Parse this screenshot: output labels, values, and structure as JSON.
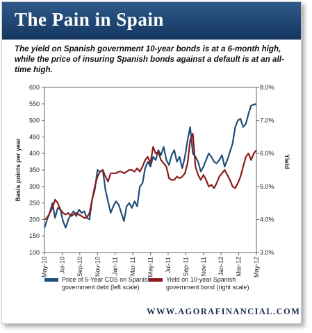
{
  "header": {
    "title": "The Pain in Spain",
    "subtitle": "The yield on Spanish government 10-year bonds is at a 6-month high, while the price of  insuring Spanish bonds against a default  is at an all-time high."
  },
  "footer": {
    "brand": "WWW.AGORAFINANCIAL.COM"
  },
  "colors": {
    "banner": "#1e4470",
    "cds": "#1f4e79",
    "yield": "#8b1a1a"
  },
  "chart_data": {
    "type": "line",
    "ylabel": "Basis points per year",
    "y2label": "Yield",
    "ylim": [
      100,
      600
    ],
    "y2lim": [
      3.0,
      8.0
    ],
    "yticks": [
      "600",
      "550",
      "500",
      "450",
      "400",
      "350",
      "300",
      "250",
      "200",
      "150",
      "100"
    ],
    "y2ticks": [
      "8.0%",
      "7.0%",
      "6.0%",
      "5.0%",
      "4.0%",
      "3.0%"
    ],
    "xticks": [
      "May-10",
      "Jul-10",
      "Sep-10",
      "Nov-10",
      "Jan-11",
      "Mar-11",
      "May-11",
      "Jul-11",
      "Sep-11",
      "Nov-11",
      "Jan-12",
      "Mar-12",
      "May-12"
    ],
    "grid": false,
    "legend_position": "bottom",
    "series": [
      {
        "name": "Price of 5-Year CDS on Spanish government debt (left scale)",
        "axis": "left",
        "x": [
          0,
          0.15,
          0.3,
          0.45,
          0.6,
          0.75,
          0.9,
          1.05,
          1.2,
          1.35,
          1.5,
          1.65,
          1.8,
          1.95,
          2.1,
          2.25,
          2.4,
          2.55,
          2.7,
          2.85,
          3.0,
          3.15,
          3.3,
          3.45,
          3.6,
          3.75,
          3.9,
          4.05,
          4.2,
          4.35,
          4.5,
          4.65,
          4.8,
          4.95,
          5.1,
          5.25,
          5.4,
          5.55,
          5.7,
          5.85,
          6.0,
          6.15,
          6.3,
          6.45,
          6.6,
          6.75,
          6.9,
          7.05,
          7.2,
          7.35,
          7.5,
          7.65,
          7.8,
          7.95,
          8.1,
          8.25,
          8.4,
          8.55,
          8.7,
          8.85,
          9.0,
          9.15,
          9.3,
          9.45,
          9.6,
          9.75,
          9.9,
          10.05,
          10.2,
          10.35,
          10.5,
          10.65,
          10.8,
          10.95,
          11.1,
          11.25,
          11.4,
          11.55,
          11.7,
          11.85,
          12.0
        ],
        "values": [
          175,
          200,
          220,
          250,
          205,
          235,
          230,
          195,
          175,
          200,
          215,
          225,
          210,
          230,
          220,
          225,
          205,
          200,
          260,
          290,
          350,
          345,
          350,
          290,
          255,
          220,
          240,
          255,
          245,
          220,
          195,
          240,
          250,
          235,
          255,
          240,
          300,
          310,
          355,
          375,
          360,
          390,
          380,
          410,
          395,
          420,
          380,
          365,
          395,
          410,
          375,
          390,
          355,
          390,
          440,
          480,
          400,
          390,
          375,
          345,
          360,
          380,
          400,
          390,
          375,
          370,
          380,
          395,
          360,
          380,
          405,
          430,
          480,
          500,
          505,
          480,
          490,
          520,
          545,
          548,
          550
        ]
      },
      {
        "name": "Yield on 10-year Spanish government bond (right scale)",
        "axis": "right",
        "x": [
          0,
          0.15,
          0.3,
          0.45,
          0.6,
          0.75,
          0.9,
          1.05,
          1.2,
          1.35,
          1.5,
          1.65,
          1.8,
          1.95,
          2.1,
          2.25,
          2.4,
          2.55,
          2.7,
          2.85,
          3.0,
          3.15,
          3.3,
          3.45,
          3.6,
          3.75,
          3.9,
          4.05,
          4.2,
          4.35,
          4.5,
          4.65,
          4.8,
          4.95,
          5.1,
          5.25,
          5.4,
          5.55,
          5.7,
          5.85,
          6.0,
          6.15,
          6.3,
          6.45,
          6.6,
          6.75,
          6.9,
          7.05,
          7.2,
          7.35,
          7.5,
          7.65,
          7.8,
          7.95,
          8.1,
          8.25,
          8.4,
          8.55,
          8.7,
          8.85,
          9.0,
          9.15,
          9.3,
          9.45,
          9.6,
          9.75,
          9.9,
          10.05,
          10.2,
          10.35,
          10.5,
          10.65,
          10.8,
          10.95,
          11.1,
          11.25,
          11.4,
          11.55,
          11.7,
          11.85,
          12.0
        ],
        "values": [
          4.0,
          4.05,
          4.2,
          4.35,
          4.6,
          4.5,
          4.3,
          4.2,
          4.15,
          4.2,
          4.1,
          4.15,
          4.2,
          4.15,
          4.1,
          4.05,
          4.05,
          4.2,
          4.6,
          5.0,
          5.3,
          5.45,
          5.5,
          5.3,
          5.15,
          5.4,
          5.4,
          5.4,
          5.45,
          5.45,
          5.4,
          5.45,
          5.5,
          5.5,
          5.45,
          5.55,
          5.45,
          5.6,
          5.8,
          5.9,
          5.7,
          6.2,
          6.0,
          6.05,
          5.8,
          5.7,
          5.6,
          5.25,
          5.2,
          5.2,
          5.3,
          5.25,
          5.3,
          5.4,
          5.7,
          6.4,
          6.6,
          5.6,
          5.35,
          5.2,
          5.35,
          5.2,
          5.0,
          5.05,
          4.95,
          5.1,
          5.3,
          5.4,
          5.5,
          5.35,
          5.2,
          5.0,
          4.95,
          5.1,
          5.3,
          5.6,
          5.9,
          6.0,
          5.8,
          6.0,
          6.1
        ]
      }
    ]
  }
}
